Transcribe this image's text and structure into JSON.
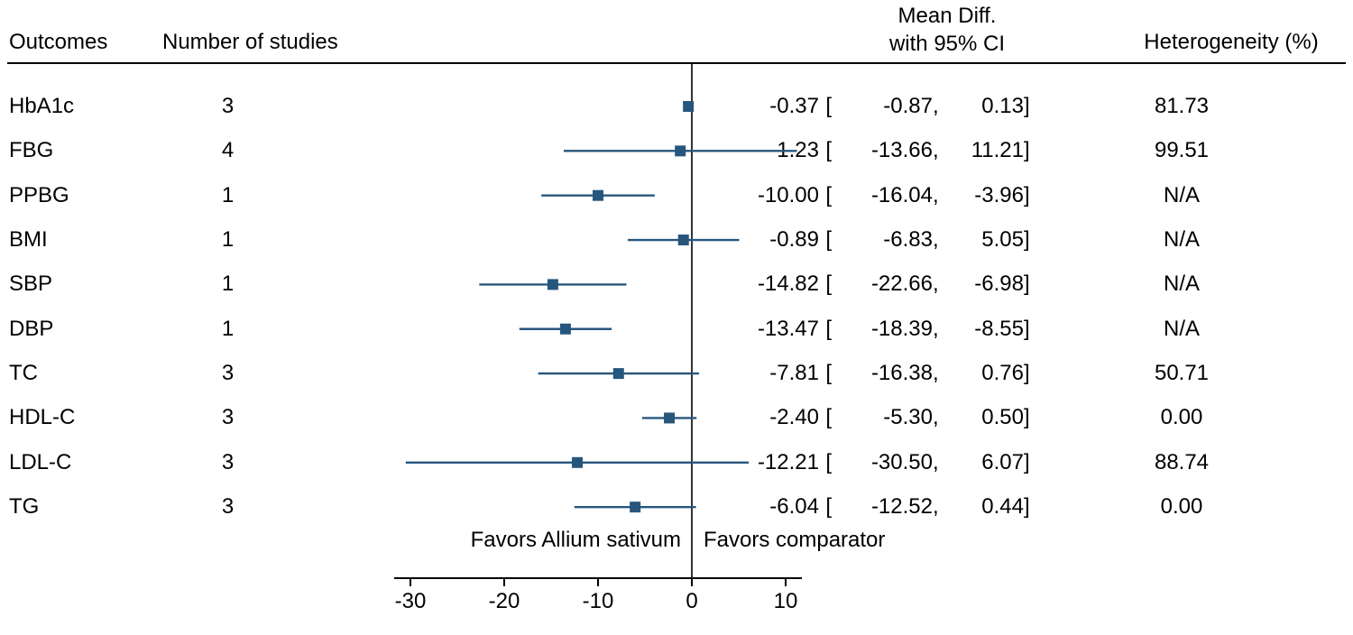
{
  "colors": {
    "marker": "#27567D",
    "line": "#27567D",
    "axis": "#000000",
    "text": "#000000"
  },
  "header": {
    "outcomes_label": "Outcomes",
    "n_studies_label": "Number of studies",
    "effect_label_line1": "Mean Diff.",
    "effect_label_line2": "with 95% CI",
    "heterogeneity_label": "Heterogeneity (%)"
  },
  "chart_data": {
    "type": "forest",
    "title": "",
    "xlabel": "",
    "x_ticks": [
      -30,
      -20,
      -10,
      0,
      10
    ],
    "xlim": [
      -31.5,
      11.5
    ],
    "reference_line_x": 0,
    "grid": false,
    "legend_position": "none",
    "favors_left_label": "Favors Allium sativum",
    "favors_right_label": "Favors comparator",
    "rows": [
      {
        "outcome": "HbA1c",
        "n_studies": "3",
        "estimate": -0.37,
        "ci_low": -0.87,
        "ci_high": 0.13,
        "heterogeneity": "81.73"
      },
      {
        "outcome": "FBG",
        "n_studies": "4",
        "estimate": -1.23,
        "ci_low": -13.66,
        "ci_high": 11.21,
        "heterogeneity": "99.51"
      },
      {
        "outcome": "PPBG",
        "n_studies": "1",
        "estimate": -10.0,
        "ci_low": -16.04,
        "ci_high": -3.96,
        "heterogeneity": "N/A"
      },
      {
        "outcome": "BMI",
        "n_studies": "1",
        "estimate": -0.89,
        "ci_low": -6.83,
        "ci_high": 5.05,
        "heterogeneity": "N/A"
      },
      {
        "outcome": "SBP",
        "n_studies": "1",
        "estimate": -14.82,
        "ci_low": -22.66,
        "ci_high": -6.98,
        "heterogeneity": "N/A"
      },
      {
        "outcome": "DBP",
        "n_studies": "1",
        "estimate": -13.47,
        "ci_low": -18.39,
        "ci_high": -8.55,
        "heterogeneity": "N/A"
      },
      {
        "outcome": "TC",
        "n_studies": "3",
        "estimate": -7.81,
        "ci_low": -16.38,
        "ci_high": 0.76,
        "heterogeneity": "50.71"
      },
      {
        "outcome": "HDL-C",
        "n_studies": "3",
        "estimate": -2.4,
        "ci_low": -5.3,
        "ci_high": 0.5,
        "heterogeneity": "0.00"
      },
      {
        "outcome": "LDL-C",
        "n_studies": "3",
        "estimate": -12.21,
        "ci_low": -30.5,
        "ci_high": 6.07,
        "heterogeneity": "88.74"
      },
      {
        "outcome": "TG",
        "n_studies": "3",
        "estimate": -6.04,
        "ci_low": -12.52,
        "ci_high": 0.44,
        "heterogeneity": "0.00"
      }
    ]
  }
}
